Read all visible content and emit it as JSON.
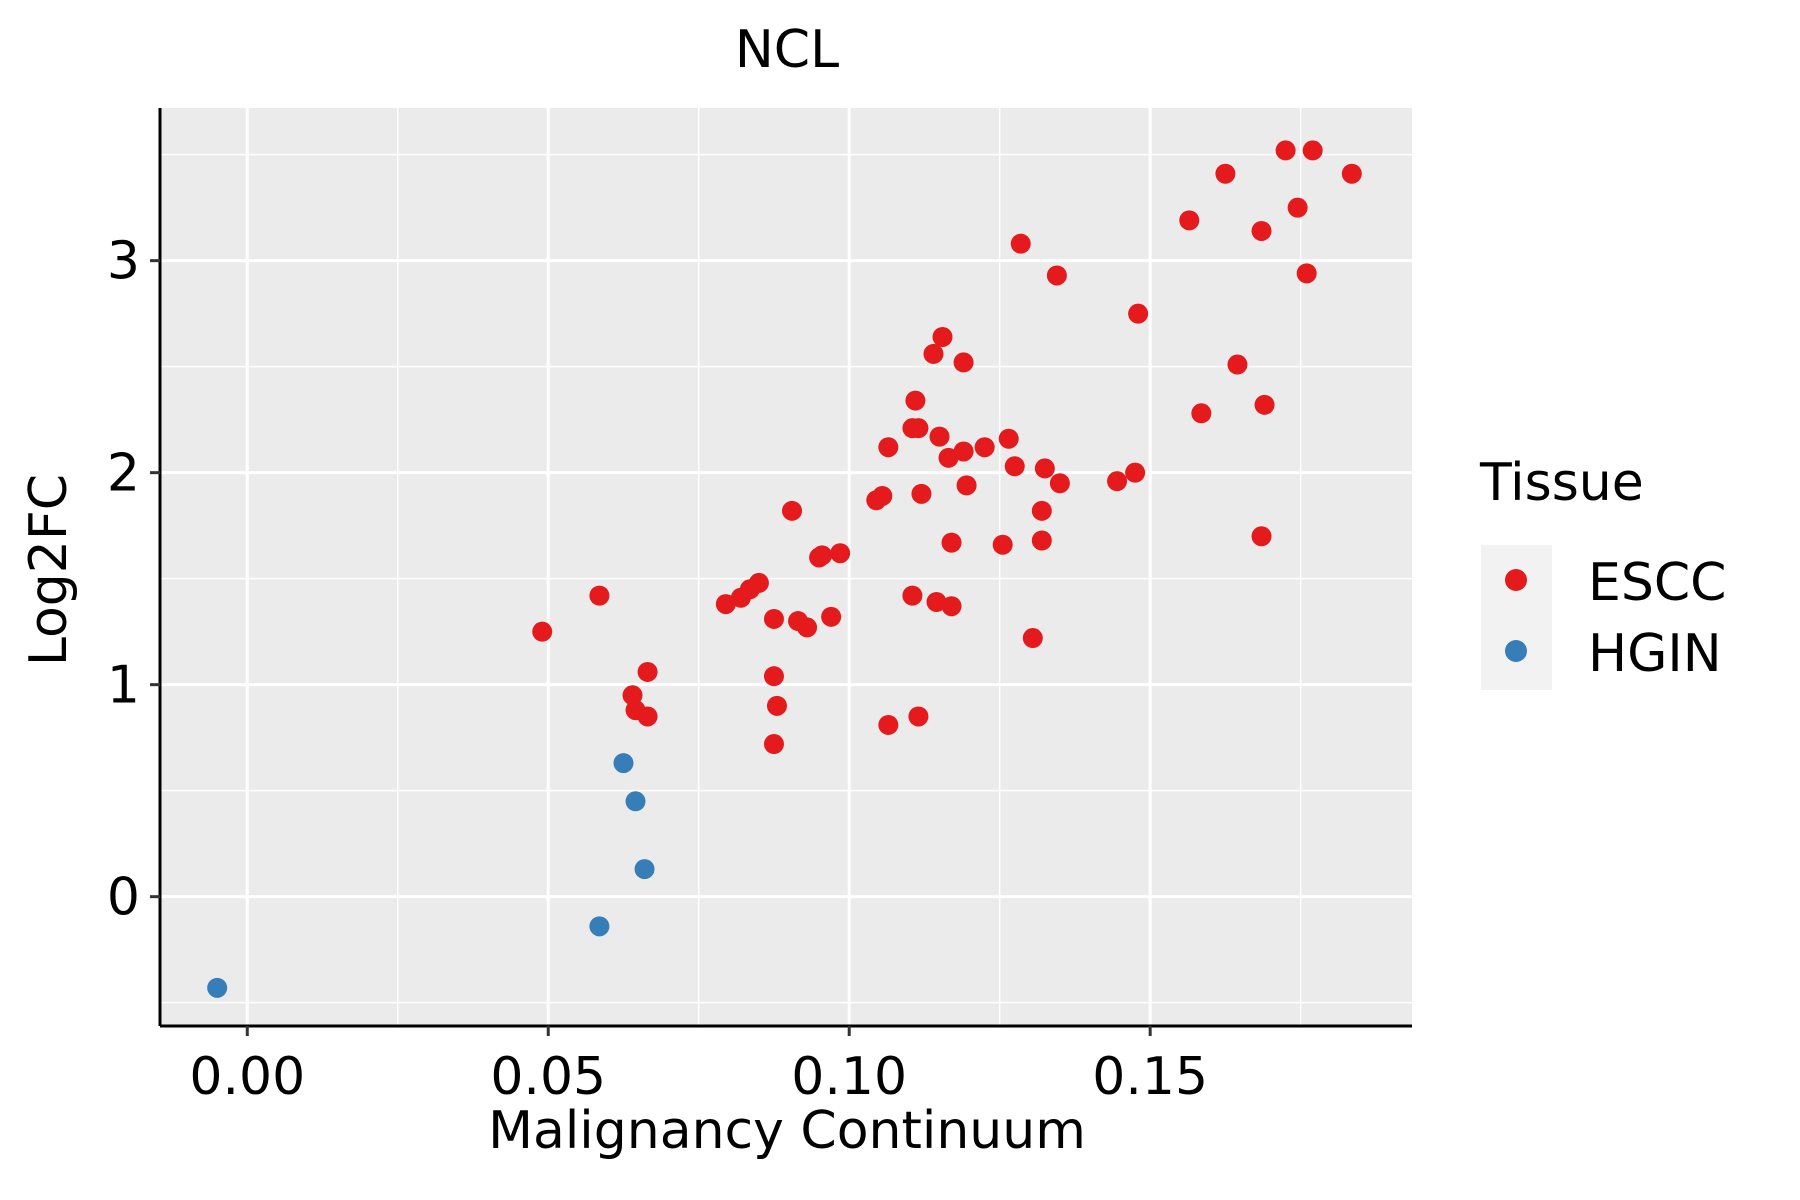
{
  "chart_data": {
    "type": "scatter",
    "title": "NCL",
    "xlabel": "Malignancy Continuum",
    "ylabel": "Log2FC",
    "xlim": [
      -0.0145,
      0.1935
    ],
    "ylim": [
      -0.61,
      3.72
    ],
    "x_ticks": [
      0.0,
      0.05,
      0.1,
      0.15
    ],
    "x_tick_labels": [
      "0.00",
      "0.05",
      "0.10",
      "0.15"
    ],
    "y_ticks": [
      0,
      1,
      2,
      3
    ],
    "y_tick_labels": [
      "0",
      "1",
      "2",
      "3"
    ],
    "grid": true,
    "legend": {
      "title": "Tissue",
      "position": "right",
      "entries": [
        {
          "name": "ESCC",
          "color": "#E41A1C"
        },
        {
          "name": "HGIN",
          "color": "#377EB8"
        }
      ]
    },
    "series": [
      {
        "name": "ESCC",
        "color": "#E41A1C",
        "points": [
          [
            0.049,
            1.25
          ],
          [
            0.0585,
            1.42
          ],
          [
            0.064,
            0.95
          ],
          [
            0.0645,
            0.88
          ],
          [
            0.0665,
            1.06
          ],
          [
            0.0665,
            0.85
          ],
          [
            0.0795,
            1.38
          ],
          [
            0.082,
            1.41
          ],
          [
            0.0835,
            1.45
          ],
          [
            0.085,
            1.48
          ],
          [
            0.0875,
            1.31
          ],
          [
            0.0875,
            1.04
          ],
          [
            0.088,
            0.9
          ],
          [
            0.0875,
            0.72
          ],
          [
            0.0905,
            1.82
          ],
          [
            0.0915,
            1.3
          ],
          [
            0.093,
            1.27
          ],
          [
            0.095,
            1.6
          ],
          [
            0.0955,
            1.61
          ],
          [
            0.097,
            1.32
          ],
          [
            0.0985,
            1.62
          ],
          [
            0.1045,
            1.87
          ],
          [
            0.1055,
            1.89
          ],
          [
            0.1065,
            2.12
          ],
          [
            0.1065,
            0.81
          ],
          [
            0.1105,
            2.21
          ],
          [
            0.111,
            2.34
          ],
          [
            0.1115,
            2.21
          ],
          [
            0.1105,
            1.42
          ],
          [
            0.1115,
            0.85
          ],
          [
            0.112,
            1.9
          ],
          [
            0.114,
            2.56
          ],
          [
            0.1145,
            1.39
          ],
          [
            0.1155,
            2.64
          ],
          [
            0.115,
            2.17
          ],
          [
            0.1165,
            2.07
          ],
          [
            0.117,
            1.67
          ],
          [
            0.117,
            1.37
          ],
          [
            0.119,
            2.1
          ],
          [
            0.119,
            2.52
          ],
          [
            0.1195,
            1.94
          ],
          [
            0.1225,
            2.12
          ],
          [
            0.1265,
            2.16
          ],
          [
            0.1255,
            1.66
          ],
          [
            0.1275,
            2.03
          ],
          [
            0.1285,
            3.08
          ],
          [
            0.1305,
            1.22
          ],
          [
            0.132,
            1.82
          ],
          [
            0.132,
            1.68
          ],
          [
            0.1325,
            2.02
          ],
          [
            0.1345,
            2.93
          ],
          [
            0.135,
            1.95
          ],
          [
            0.1445,
            1.96
          ],
          [
            0.1475,
            2.0
          ],
          [
            0.148,
            2.75
          ],
          [
            0.1565,
            3.19
          ],
          [
            0.1585,
            2.28
          ],
          [
            0.1625,
            3.41
          ],
          [
            0.1645,
            2.51
          ],
          [
            0.1685,
            3.14
          ],
          [
            0.1685,
            1.7
          ],
          [
            0.169,
            2.32
          ],
          [
            0.1725,
            3.52
          ],
          [
            0.1745,
            3.25
          ],
          [
            0.176,
            2.94
          ],
          [
            0.177,
            3.52
          ],
          [
            0.1835,
            3.41
          ]
        ]
      },
      {
        "name": "HGIN",
        "color": "#377EB8",
        "points": [
          [
            -0.005,
            -0.43
          ],
          [
            0.0585,
            -0.14
          ],
          [
            0.0625,
            0.63
          ],
          [
            0.0645,
            0.45
          ],
          [
            0.066,
            0.13
          ]
        ]
      }
    ]
  }
}
